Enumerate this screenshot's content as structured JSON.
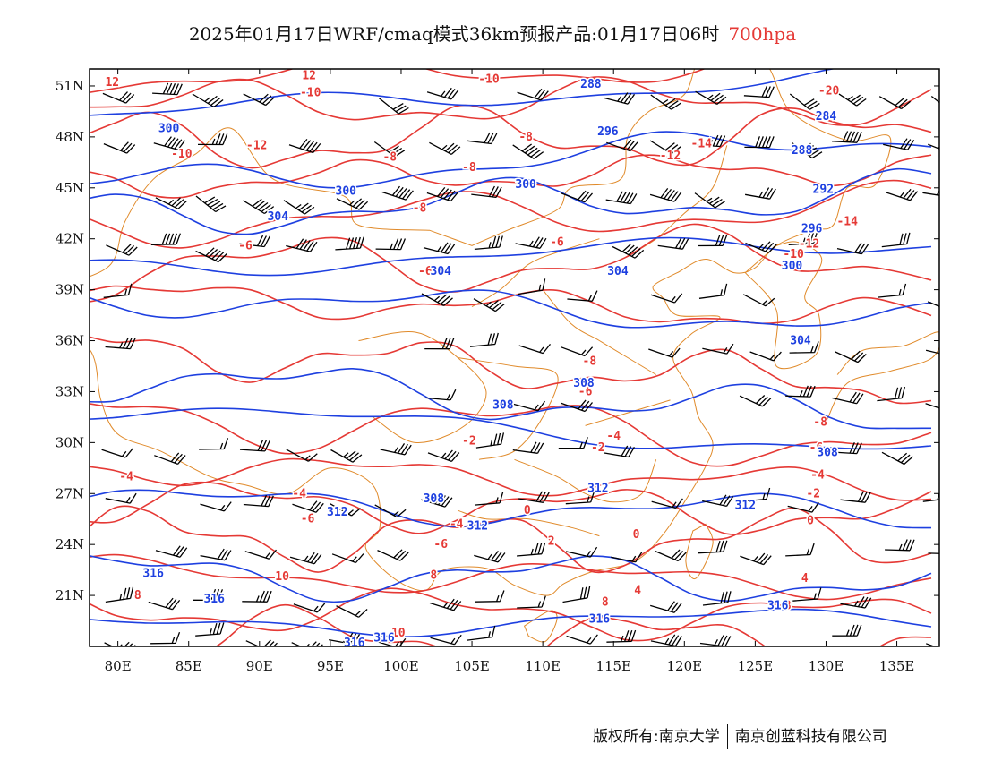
{
  "title": {
    "text": "2025年01月17日WRF/cmaq模式36km预报产品:01月17日06时",
    "level": "700hpa"
  },
  "copyright": {
    "left": "版权所有:南京大学",
    "right": "南京创蓝科技有限公司"
  },
  "colors": {
    "temperature_contour": "#e53935",
    "height_contour": "#1e40e0",
    "boundaries": "#e08a2a",
    "wind_barb": "#000000"
  },
  "map": {
    "lon_range": [
      78,
      138
    ],
    "lat_range": [
      18,
      52
    ],
    "lat_ticks": [
      "51N",
      "48N",
      "45N",
      "42N",
      "39N",
      "36N",
      "33N",
      "30N",
      "27N",
      "24N",
      "21N"
    ],
    "lon_ticks": [
      "80E",
      "85E",
      "90E",
      "95E",
      "100E",
      "105E",
      "110E",
      "115E",
      "120E",
      "125E",
      "130E",
      "135E"
    ]
  },
  "temperature_labels": [
    {
      "text": "12",
      "lon": 79.6,
      "lat": 51.2
    },
    {
      "text": "12",
      "lon": 93.5,
      "lat": 51.6
    },
    {
      "text": "-10",
      "lon": 93.6,
      "lat": 50.6
    },
    {
      "text": "-10",
      "lon": 106.2,
      "lat": 51.4
    },
    {
      "text": "-20",
      "lon": 130.2,
      "lat": 50.7
    },
    {
      "text": "-10",
      "lon": 84.5,
      "lat": 47.0
    },
    {
      "text": "-12",
      "lon": 89.8,
      "lat": 47.5
    },
    {
      "text": "-8",
      "lon": 108.8,
      "lat": 48.0
    },
    {
      "text": "-8",
      "lon": 99.2,
      "lat": 46.8
    },
    {
      "text": "-8",
      "lon": 104.8,
      "lat": 46.2
    },
    {
      "text": "-14",
      "lon": 121.2,
      "lat": 47.6
    },
    {
      "text": "-12",
      "lon": 119.0,
      "lat": 46.9
    },
    {
      "text": "-8",
      "lon": 101.3,
      "lat": 43.8
    },
    {
      "text": "-14",
      "lon": 131.5,
      "lat": 43.0
    },
    {
      "text": "-12",
      "lon": 128.8,
      "lat": 41.7
    },
    {
      "text": "-10",
      "lon": 127.7,
      "lat": 41.1
    },
    {
      "text": "-6",
      "lon": 89.0,
      "lat": 41.6
    },
    {
      "text": "-6",
      "lon": 111.0,
      "lat": 41.8
    },
    {
      "text": "-6",
      "lon": 101.7,
      "lat": 40.1
    },
    {
      "text": "-8",
      "lon": 113.3,
      "lat": 34.8
    },
    {
      "text": "-6",
      "lon": 113.0,
      "lat": 33.0
    },
    {
      "text": "-8",
      "lon": 129.6,
      "lat": 31.2
    },
    {
      "text": "-4",
      "lon": 115.0,
      "lat": 30.4
    },
    {
      "text": "-6",
      "lon": 129.3,
      "lat": 29.7
    },
    {
      "text": "-2",
      "lon": 113.9,
      "lat": 29.7
    },
    {
      "text": "-2",
      "lon": 104.8,
      "lat": 30.1
    },
    {
      "text": "-4",
      "lon": 129.4,
      "lat": 28.1
    },
    {
      "text": "-2",
      "lon": 129.1,
      "lat": 27.0
    },
    {
      "text": "-4",
      "lon": 80.6,
      "lat": 28.0
    },
    {
      "text": "-4",
      "lon": 92.8,
      "lat": 27.0
    },
    {
      "text": "-6",
      "lon": 93.4,
      "lat": 25.5
    },
    {
      "text": "0",
      "lon": 108.9,
      "lat": 26.0
    },
    {
      "text": "0",
      "lon": 128.9,
      "lat": 25.4
    },
    {
      "text": "-4",
      "lon": 103.9,
      "lat": 25.2
    },
    {
      "text": "0",
      "lon": 116.6,
      "lat": 24.6
    },
    {
      "text": "2",
      "lon": 110.6,
      "lat": 24.2
    },
    {
      "text": "-6",
      "lon": 102.8,
      "lat": 24.0
    },
    {
      "text": "4",
      "lon": 128.5,
      "lat": 22.0
    },
    {
      "text": "8",
      "lon": 102.3,
      "lat": 22.2
    },
    {
      "text": "10",
      "lon": 91.6,
      "lat": 22.1
    },
    {
      "text": "8",
      "lon": 81.4,
      "lat": 21.0
    },
    {
      "text": "8",
      "lon": 114.4,
      "lat": 20.6
    },
    {
      "text": "4",
      "lon": 116.7,
      "lat": 21.3
    },
    {
      "text": "8",
      "lon": 127.3,
      "lat": 20.4
    },
    {
      "text": "10",
      "lon": 99.8,
      "lat": 18.8
    }
  ],
  "height_labels": [
    {
      "text": "288",
      "lon": 113.4,
      "lat": 51.1
    },
    {
      "text": "284",
      "lon": 130.0,
      "lat": 49.2
    },
    {
      "text": "300",
      "lon": 83.6,
      "lat": 48.5
    },
    {
      "text": "296",
      "lon": 114.6,
      "lat": 48.3
    },
    {
      "text": "288",
      "lon": 128.3,
      "lat": 47.2
    },
    {
      "text": "300",
      "lon": 96.1,
      "lat": 44.8
    },
    {
      "text": "300",
      "lon": 108.8,
      "lat": 45.2
    },
    {
      "text": "292",
      "lon": 129.8,
      "lat": 44.9
    },
    {
      "text": "304",
      "lon": 91.3,
      "lat": 43.3
    },
    {
      "text": "296",
      "lon": 129.0,
      "lat": 42.6
    },
    {
      "text": "300",
      "lon": 127.6,
      "lat": 40.4
    },
    {
      "text": "304",
      "lon": 102.8,
      "lat": 40.1
    },
    {
      "text": "304",
      "lon": 115.3,
      "lat": 40.1
    },
    {
      "text": "304",
      "lon": 128.2,
      "lat": 36.0
    },
    {
      "text": "308",
      "lon": 112.9,
      "lat": 33.5
    },
    {
      "text": "308",
      "lon": 107.2,
      "lat": 32.2
    },
    {
      "text": "308",
      "lon": 130.1,
      "lat": 29.4
    },
    {
      "text": "312",
      "lon": 113.9,
      "lat": 27.3
    },
    {
      "text": "308",
      "lon": 102.3,
      "lat": 26.7
    },
    {
      "text": "312",
      "lon": 124.3,
      "lat": 26.3
    },
    {
      "text": "312",
      "lon": 95.5,
      "lat": 25.9
    },
    {
      "text": "312",
      "lon": 105.4,
      "lat": 25.1
    },
    {
      "text": "316",
      "lon": 82.5,
      "lat": 22.3
    },
    {
      "text": "316",
      "lon": 86.8,
      "lat": 20.8
    },
    {
      "text": "316",
      "lon": 114.0,
      "lat": 19.6
    },
    {
      "text": "316",
      "lon": 126.6,
      "lat": 20.4
    },
    {
      "text": "316",
      "lon": 96.7,
      "lat": 18.2
    },
    {
      "text": "316",
      "lon": 98.8,
      "lat": 18.5
    }
  ]
}
